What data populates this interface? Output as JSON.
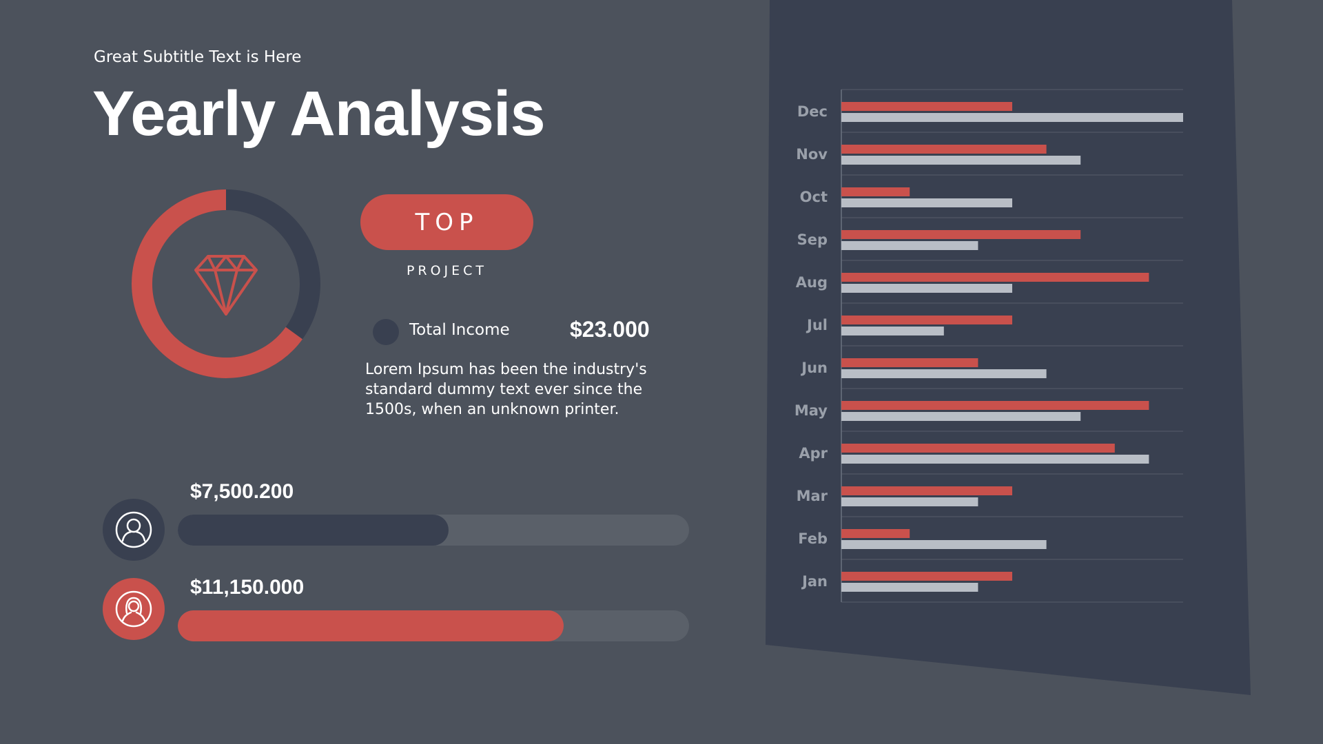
{
  "header": {
    "subtitle": "Great Subtitle Text is Here",
    "title": "Yearly Analysis"
  },
  "colors": {
    "background": "#4c525c",
    "panel": "#394050",
    "accent_red": "#c9514c",
    "bar_gray": "#b9bec6",
    "track": "#5a6069"
  },
  "highlight": {
    "badge_label": "TOP",
    "badge_sublabel": "PROJECT",
    "icon": "diamond-icon",
    "donut_share": 0.65,
    "income_label": "Total Income",
    "income_value": "$23.000",
    "description": "Lorem Ipsum has been the industry's standard dummy text ever since the 1500s, when an unknown printer."
  },
  "progress": [
    {
      "icon": "male-user-icon",
      "amount": "$7,500.200",
      "fraction": 0.53,
      "color": "#394050"
    },
    {
      "icon": "female-user-icon",
      "amount": "$11,150.000",
      "fraction": 0.755,
      "color": "#c9514c"
    }
  ],
  "chart_data": {
    "type": "bar",
    "orientation": "horizontal",
    "categories": [
      "Dec",
      "Nov",
      "Oct",
      "Sep",
      "Aug",
      "Jul",
      "Jun",
      "May",
      "Apr",
      "Mar",
      "Feb",
      "Jan"
    ],
    "series": [
      {
        "color": "#c9514c",
        "values": [
          5,
          6,
          2,
          7,
          9,
          5,
          4,
          9,
          8,
          5,
          2,
          5
        ]
      },
      {
        "color": "#b9bec6",
        "values": [
          10,
          7,
          5,
          4,
          5,
          3,
          6,
          7,
          9,
          4,
          6,
          4
        ]
      }
    ],
    "xlim": [
      0,
      10
    ],
    "grid": true,
    "legend": "none"
  }
}
